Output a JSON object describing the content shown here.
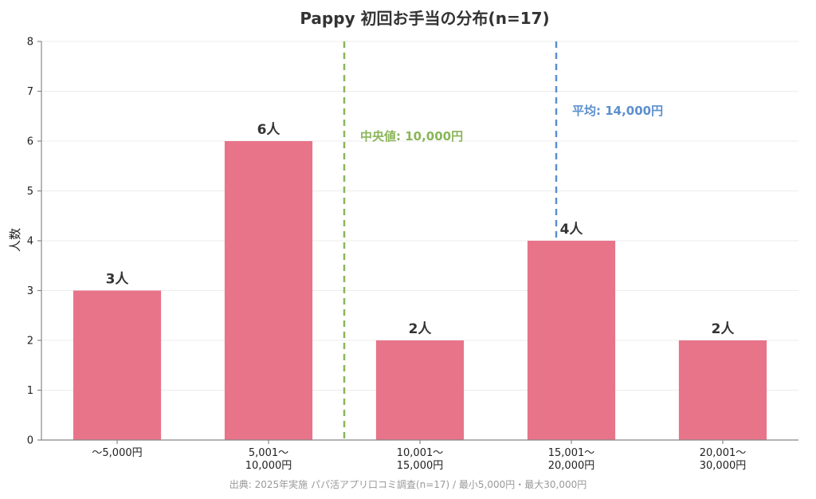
{
  "chart_data": {
    "type": "bar",
    "title": "Pappy 初回お手当の分布(n=17)",
    "ylabel": "人数",
    "xlabel": "",
    "ylim": [
      0,
      8
    ],
    "yticks": [
      "0",
      "1",
      "2",
      "3",
      "4",
      "5",
      "6",
      "7",
      "8"
    ],
    "grid": true,
    "categories": [
      [
        "〜5,000円"
      ],
      [
        "5,001〜",
        "10,000円"
      ],
      [
        "10,001〜",
        "15,000円"
      ],
      [
        "15,001〜",
        "20,000円"
      ],
      [
        "20,001〜",
        "30,000円"
      ]
    ],
    "values": [
      3,
      6,
      2,
      4,
      2
    ],
    "data_labels": [
      "3人",
      "6人",
      "2人",
      "4人",
      "2人"
    ],
    "bar_color": "#e8748a",
    "reference_lines": [
      {
        "label": "中央値: 10,000円",
        "position_category": 1.5,
        "color": "#8ab55a"
      },
      {
        "label": "平均: 14,000円",
        "position_category": 2.9,
        "color": "#5b8fcf"
      }
    ],
    "source": "出典: 2025年実施 パパ活アプリ口コミ調査(n=17) / 最小5,000円・最大30,000円"
  }
}
